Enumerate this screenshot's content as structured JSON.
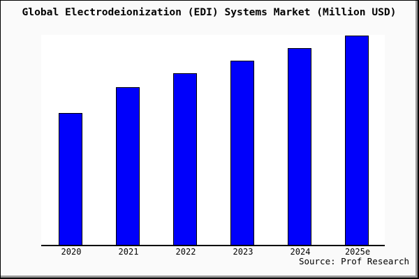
{
  "title": "Global Electrodeionization (EDI) Systems Market (Million USD)",
  "source": "Source: Prof Research",
  "colors": {
    "background": "#fafafa",
    "plot_background": "#ffffff",
    "bar_fill": "#0000fb",
    "bar_border": "#000000",
    "axis": "#000000",
    "frame_border": "#000000",
    "frame_shadow": "#9a9a9a"
  },
  "chart_data": {
    "type": "bar",
    "title": "Global Electrodeionization (EDI) Systems Market (Million USD)",
    "categories": [
      "2020",
      "2021",
      "2022",
      "2023",
      "2024",
      "2025e"
    ],
    "values": [
      63,
      75.3,
      82,
      88,
      94,
      100
    ],
    "values_note": "no y-axis scale shown in image; values are relative units with 2025e = 100",
    "xlabel": "",
    "ylabel": "",
    "ylim": [
      0,
      100.3
    ],
    "grid": false,
    "legend": false,
    "bar_count": 6
  }
}
